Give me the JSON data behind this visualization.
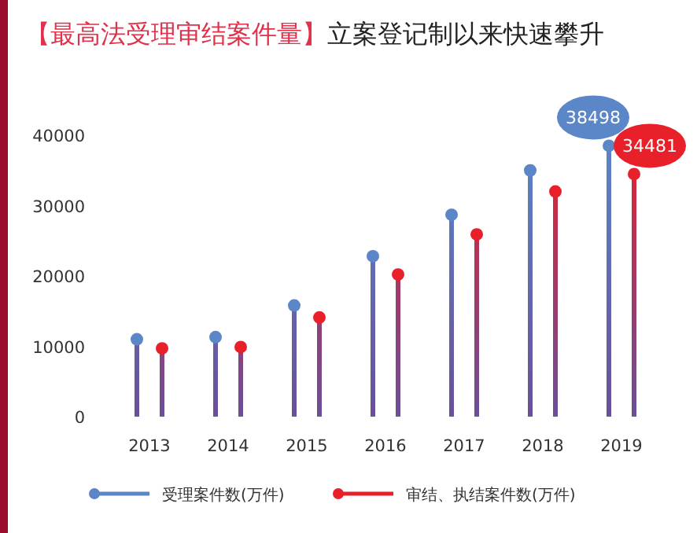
{
  "chart_data": {
    "type": "lollipop",
    "title": "【最高法受理审结案件量】",
    "subtitle": "立案登记制以来快速攀升",
    "categories": [
      "2013",
      "2014",
      "2015",
      "2016",
      "2017",
      "2018",
      "2019"
    ],
    "series": [
      {
        "name": "受理案件数(万件)",
        "color": "#5b86c8",
        "values": [
          11000,
          11300,
          15800,
          22800,
          28700,
          35000,
          38498
        ],
        "value_labels": [
          null,
          null,
          null,
          null,
          null,
          null,
          "38498"
        ]
      },
      {
        "name": "审结、执结案件数(万件)",
        "color": "#e8202a",
        "values": [
          9700,
          9900,
          14100,
          20200,
          25900,
          32000,
          34481
        ],
        "value_labels": [
          null,
          null,
          null,
          null,
          null,
          null,
          "34481"
        ]
      }
    ],
    "ylim": [
      0,
      40000
    ],
    "yticks": [
      0,
      10000,
      20000,
      30000,
      40000
    ],
    "legend": "bottom",
    "marker": "circle"
  }
}
